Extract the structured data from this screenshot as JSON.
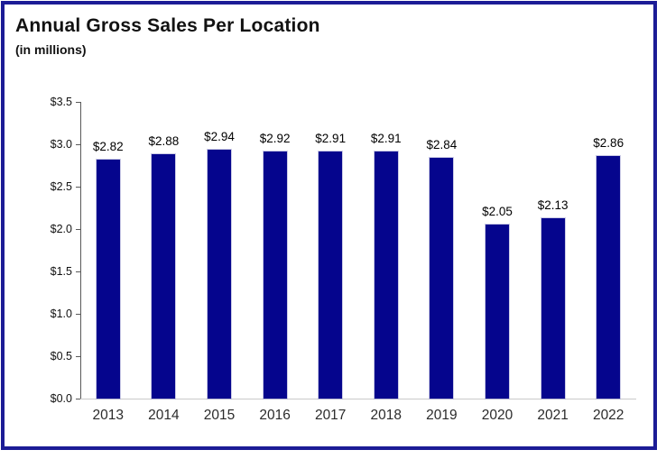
{
  "frame": {
    "border_color": "#1c1c96",
    "background": "#ffffff"
  },
  "header": {
    "title": "Annual Gross Sales Per Location",
    "subtitle": "(in millions)"
  },
  "chart_data": {
    "type": "bar",
    "title": "Annual Gross Sales Per Location",
    "subtitle": "(in millions)",
    "categories": [
      "2013",
      "2014",
      "2015",
      "2016",
      "2017",
      "2018",
      "2019",
      "2020",
      "2021",
      "2022"
    ],
    "values": [
      2.82,
      2.88,
      2.94,
      2.92,
      2.91,
      2.91,
      2.84,
      2.05,
      2.13,
      2.86
    ],
    "value_labels": [
      "$2.82",
      "$2.88",
      "$2.94",
      "$2.92",
      "$2.91",
      "$2.91",
      "$2.84",
      "$2.05",
      "$2.13",
      "$2.86"
    ],
    "xlabel": "",
    "ylabel": "",
    "ylim": [
      0,
      3.5
    ],
    "ytick_interval": 0.5,
    "ytick_labels": [
      "$0.0",
      "$0.5",
      "$1.0",
      "$1.5",
      "$2.0",
      "$2.5",
      "$3.0",
      "$3.5"
    ],
    "grid": false,
    "legend": false,
    "bar_color": "#05058d",
    "axis_color": "#595959",
    "baseline_color": "#c9c9c9",
    "label_color": "#000000"
  }
}
